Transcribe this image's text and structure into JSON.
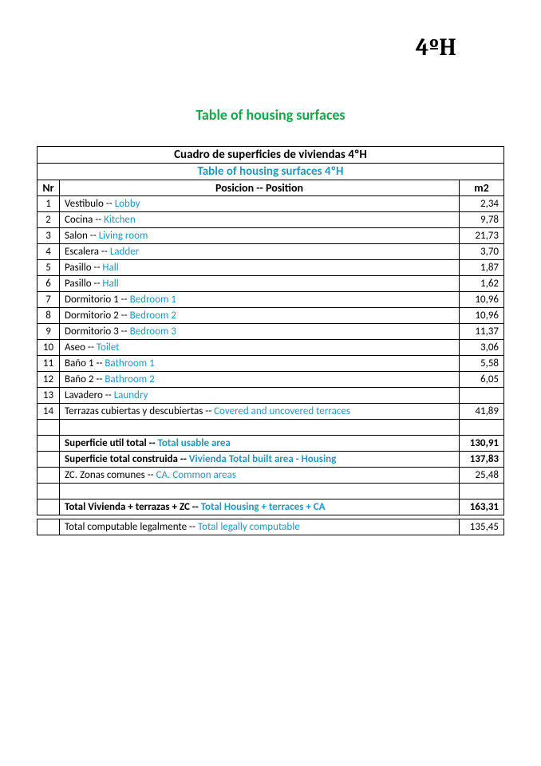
{
  "colors": {
    "green": "#16a74a",
    "cyan": "#2596be",
    "black": "#000000"
  },
  "unitLabel": "4ºH",
  "pageTitle": "Table of housing surfaces",
  "tableHeader": {
    "line1": "Cuadro de superficies de viviendas 4ºH",
    "line2": "Table of housing surfaces 4ºH"
  },
  "columns": {
    "nr": "Nr",
    "position": "Posicion -- Position",
    "m2": "m2"
  },
  "rows": [
    {
      "nr": "1",
      "es": "Vestibulo -- ",
      "en": "Lobby",
      "m2": "2,34"
    },
    {
      "nr": "2",
      "es": "Cocina --  ",
      "en": "Kitchen",
      "m2": "9,78"
    },
    {
      "nr": "3",
      "es": "Salon -- ",
      "en": "Living room",
      "m2": "21,73"
    },
    {
      "nr": "4",
      "es": "Escalera -- ",
      "en": "Ladder",
      "m2": "3,70"
    },
    {
      "nr": "5",
      "es": "Pasillo -- ",
      "en": "Hall",
      "m2": "1,87"
    },
    {
      "nr": "6",
      "es": "Pasillo -- ",
      "en": "Hall",
      "m2": "1,62"
    },
    {
      "nr": "7",
      "es": "Dormitorio 1 -- ",
      "en": "Bedroom 1",
      "m2": "10,96"
    },
    {
      "nr": "8",
      "es": "Dormitorio 2 -- ",
      "en": "Bedroom 2",
      "m2": "10,96"
    },
    {
      "nr": "9",
      "es": "Dormitorio 3 -- ",
      "en": "Bedroom 3",
      "m2": "11,37"
    },
    {
      "nr": "10",
      "es": "Aseo -- ",
      "en": "Toilet",
      "m2": "3,06"
    },
    {
      "nr": "11",
      "es": "Baño 1 -- ",
      "en": "Bathroom 1",
      "m2": "5,58"
    },
    {
      "nr": "12",
      "es": "Baño 2 -- ",
      "en": "Bathroom 2",
      "m2": "6,05"
    },
    {
      "nr": "13",
      "es": "Lavadero -- ",
      "en": "Laundry",
      "m2": ""
    },
    {
      "nr": "14",
      "es": "Terrazas cubiertas y descubiertas -- ",
      "en": "Covered and uncovered terraces",
      "m2": "41,89"
    }
  ],
  "summary": [
    {
      "bold": true,
      "es": "Superficie util total -- ",
      "en": "Total usable area",
      "m2": "130,91"
    },
    {
      "bold": true,
      "es": "Superficie total construida -- ",
      "en": "Vivienda Total built area - Housing",
      "m2": "137,83"
    },
    {
      "bold": false,
      "es": "ZC. Zonas comunes  -- ",
      "en": "CA. Common areas",
      "m2": "25,48"
    }
  ],
  "total": {
    "es": "Total Vivienda + terrazas + ZC  -- ",
    "en": "Total Housing + terraces + CA",
    "m2": "163,31"
  },
  "legal": {
    "es": "Total computable legalmente -- ",
    "en": "Total legally computable",
    "m2": "135,45"
  }
}
